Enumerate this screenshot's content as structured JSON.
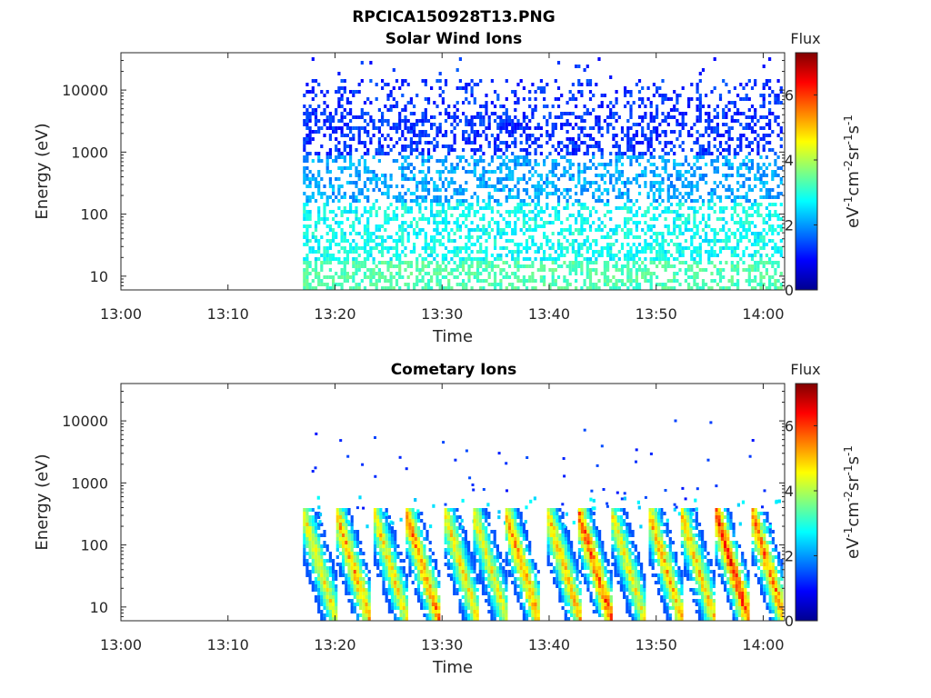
{
  "figure_title": "RPCICA150928T13.PNG",
  "colormap": [
    "#00008f",
    "#0000ff",
    "#0080ff",
    "#00ffff",
    "#80ff80",
    "#ffff00",
    "#ff8000",
    "#ff0000",
    "#800000"
  ],
  "chart_data": [
    {
      "type": "heatmap",
      "title": "Solar Wind Ions",
      "xlabel": "Time",
      "ylabel": "Energy (eV)",
      "x_ticks": [
        "13:00",
        "13:10",
        "13:20",
        "13:30",
        "13:40",
        "13:50",
        "14:00"
      ],
      "x_range": [
        "13:00",
        "14:02"
      ],
      "y_scale": "log",
      "y_ticks": [
        "10",
        "100",
        "1000",
        "10000"
      ],
      "y_range": [
        6,
        40000
      ],
      "data_start": "13:17",
      "colorbar": {
        "title": "Flux",
        "label": "eV-1cm-2sr-1s-1",
        "ticks": [
          "0",
          "2",
          "4",
          "6"
        ],
        "range": [
          0,
          7.3
        ]
      },
      "description_profile": "sparse blue-cyan scatter from ~5 eV up to ~40000 eV, densest below 3000 eV"
    },
    {
      "type": "heatmap",
      "title": "Cometary Ions",
      "xlabel": "Time",
      "ylabel": "Energy (eV)",
      "x_ticks": [
        "13:00",
        "13:10",
        "13:20",
        "13:30",
        "13:40",
        "13:50",
        "14:00"
      ],
      "x_range": [
        "13:00",
        "14:02"
      ],
      "y_scale": "log",
      "y_ticks": [
        "10",
        "100",
        "1000",
        "10000"
      ],
      "y_range": [
        6,
        40000
      ],
      "data_start": "13:17",
      "colorbar": {
        "title": "Flux",
        "label": "eV-1cm-2sr-1s-1",
        "ticks": [
          "0",
          "2",
          "4",
          "6"
        ],
        "range": [
          0,
          7.3
        ]
      },
      "bursts": [
        {
          "t": "13:18.7",
          "peak_flux": 4.8
        },
        {
          "t": "13:21.8",
          "peak_flux": 5.4
        },
        {
          "t": "13:25.3",
          "peak_flux": 4.9
        },
        {
          "t": "13:28.3",
          "peak_flux": 5.6
        },
        {
          "t": "13:31.9",
          "peak_flux": 5.0
        },
        {
          "t": "13:34.6",
          "peak_flux": 4.8
        },
        {
          "t": "13:37.6",
          "peak_flux": 5.5
        },
        {
          "t": "13:41.5",
          "peak_flux": 5.2
        },
        {
          "t": "13:44.4",
          "peak_flux": 6.0
        },
        {
          "t": "13:47.5",
          "peak_flux": 4.7
        },
        {
          "t": "13:51.0",
          "peak_flux": 5.3
        },
        {
          "t": "13:54.0",
          "peak_flux": 5.1
        },
        {
          "t": "13:57.2",
          "peak_flux": 6.3
        },
        {
          "t": "14:00.6",
          "peak_flux": 5.7
        }
      ]
    }
  ]
}
